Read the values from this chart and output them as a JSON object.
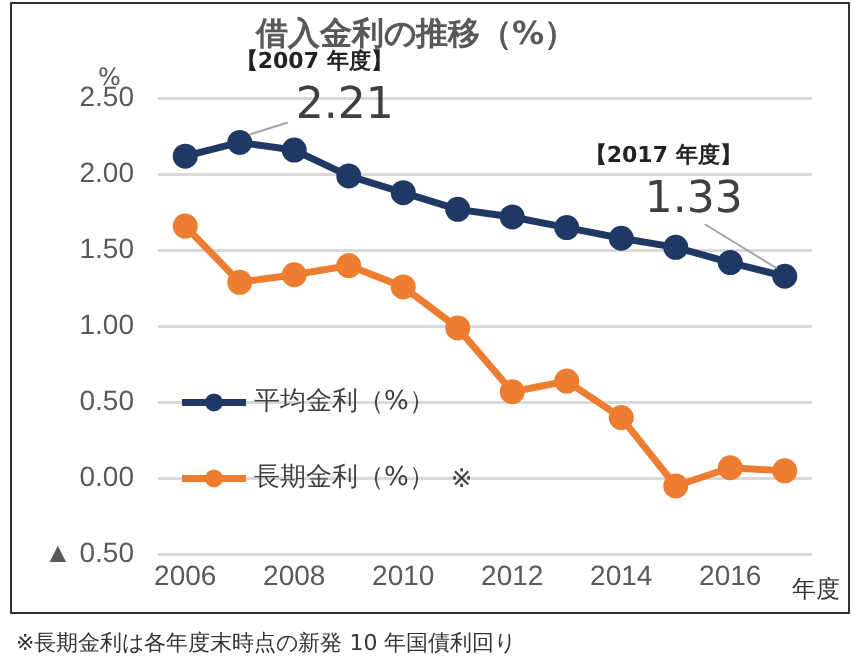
{
  "chart_data": {
    "type": "line",
    "title": "借入金利の推移（%）",
    "xlabel": "年度",
    "ylabel": "%",
    "x": [
      2006,
      2007,
      2008,
      2009,
      2010,
      2011,
      2012,
      2013,
      2014,
      2015,
      2016,
      2017
    ],
    "series": [
      {
        "name": "平均金利（%）",
        "color": "#203864",
        "values": [
          2.12,
          2.21,
          2.16,
          1.99,
          1.88,
          1.77,
          1.72,
          1.65,
          1.58,
          1.52,
          1.42,
          1.33
        ],
        "value_labels": [
          null,
          "2.21",
          null,
          null,
          null,
          null,
          null,
          null,
          null,
          null,
          null,
          "1.33"
        ]
      },
      {
        "name": "長期金利（%）",
        "color": "#ed7d31",
        "values": [
          1.66,
          1.29,
          1.34,
          1.4,
          1.26,
          0.99,
          0.57,
          0.64,
          0.4,
          -0.05,
          0.07,
          0.05
        ]
      }
    ],
    "xlim": [
      2005.5,
      2017.5
    ],
    "xticks": [
      2006,
      2008,
      2010,
      2012,
      2014,
      2016
    ],
    "ylim": [
      -0.5,
      2.5
    ],
    "yticks": [
      {
        "value": -0.5,
        "label": "▲ 0.50"
      },
      {
        "value": 0,
        "label": "0.00"
      },
      {
        "value": 0.5,
        "label": "0.50"
      },
      {
        "value": 1,
        "label": "1.00"
      },
      {
        "value": 1.5,
        "label": "1.50"
      },
      {
        "value": 2,
        "label": "2.00"
      },
      {
        "value": 2.5,
        "label": "2.50"
      }
    ],
    "grid": "y",
    "legend": "bottom left",
    "marker": "circle",
    "line_style": "solid",
    "annotations": [
      "【2007 年度】",
      "【2017 年度】",
      "※",
      "※長期金利は各年度末時点の新発 10 年国債利回り"
    ]
  }
}
